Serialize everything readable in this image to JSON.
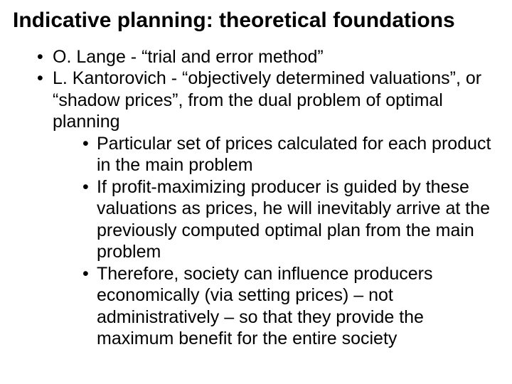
{
  "slide": {
    "title": "Indicative planning: theoretical foundations",
    "bullets": [
      {
        "text": "O. Lange - “trial and error method”",
        "children": []
      },
      {
        "text": "L. Kantorovich - “objectively determined valuations”, or “shadow prices”, from the dual problem of optimal planning",
        "children": [
          {
            "text": "Particular set of prices calculated for each product in the main problem"
          },
          {
            "text": "If profit-maximizing producer is guided by these valuations as prices, he will inevitably arrive at the previously computed optimal plan from the main problem"
          },
          {
            "text": "Therefore, society can influence producers economically (via setting prices) – not administratively – so that they provide the maximum benefit for the entire society"
          }
        ]
      }
    ],
    "style": {
      "background_color": "#ffffff",
      "text_color": "#000000",
      "title_fontsize_pt": 22,
      "title_fontweight": 700,
      "body_fontsize_pt": 19,
      "body_fontweight": 400,
      "font_family": "Arial",
      "bullet_glyph": "•"
    }
  }
}
